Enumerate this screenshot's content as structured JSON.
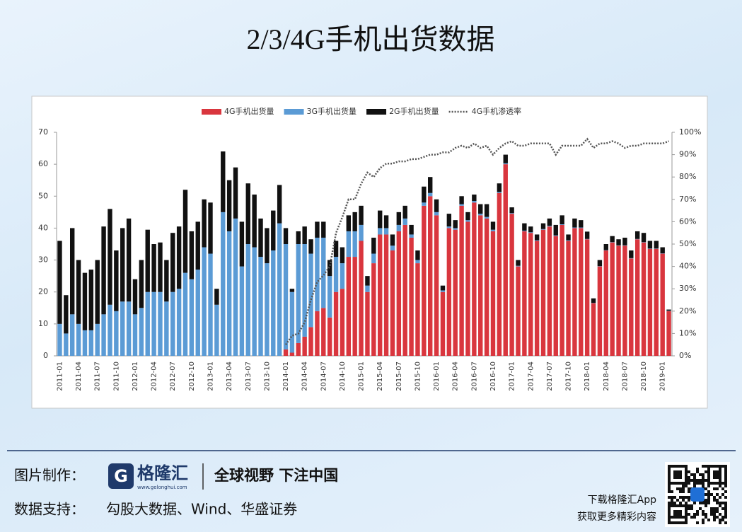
{
  "chart_data": {
    "type": "bar",
    "stacked": true,
    "title": "2/3/4G手机出货数据",
    "categories": [
      "2011-01",
      null,
      null,
      "2011-04",
      null,
      null,
      "2011-07",
      null,
      null,
      "2011-10",
      null,
      null,
      "2012-01",
      null,
      null,
      "2012-04",
      null,
      null,
      "2012-07",
      null,
      null,
      "2012-10",
      null,
      null,
      "2013-01",
      null,
      null,
      "2013-04",
      null,
      null,
      "2013-07",
      null,
      null,
      "2013-10",
      null,
      null,
      "2014-01",
      null,
      null,
      "2014-04",
      null,
      null,
      "2014-07",
      null,
      null,
      "2014-10",
      null,
      null,
      "2015-01",
      null,
      null,
      "2015-04",
      null,
      null,
      "2015-07",
      null,
      null,
      "2015-10",
      null,
      null,
      "2016-01",
      null,
      null,
      "2016-04",
      null,
      null,
      "2016-07",
      null,
      null,
      "2016-10",
      null,
      null,
      "2017-01",
      null,
      null,
      "2017-04",
      null,
      null,
      "2017-07",
      null,
      null,
      "2017-10",
      null,
      null,
      "2018-01",
      null,
      null,
      "2018-04",
      null,
      null,
      "2018-07",
      null,
      null,
      "2018-10",
      null,
      null,
      "2019-01",
      null
    ],
    "series": [
      {
        "name": "4G手机出货量",
        "color": "#d9363e",
        "values": [
          null,
          null,
          null,
          null,
          null,
          null,
          null,
          null,
          null,
          null,
          null,
          null,
          null,
          null,
          null,
          null,
          null,
          null,
          null,
          null,
          null,
          null,
          null,
          null,
          null,
          null,
          null,
          null,
          null,
          null,
          null,
          null,
          null,
          null,
          null,
          null,
          2,
          1,
          4,
          6,
          9,
          14,
          15,
          12,
          20,
          21,
          31,
          31,
          36,
          20,
          29,
          38,
          38,
          33,
          39,
          41,
          37,
          29,
          47,
          50,
          44,
          20,
          40,
          39.5,
          47,
          42,
          48,
          44,
          43,
          39,
          51,
          60,
          44.5,
          28,
          39,
          38.5,
          36,
          39.5,
          40.5,
          37.5,
          41,
          36,
          40,
          40,
          36.5,
          16.5,
          28,
          33,
          35.5,
          34.5,
          34.5,
          30.5,
          36.5,
          35.5,
          33.5,
          33.5,
          32,
          14
        ]
      },
      {
        "name": "3G手机出货量",
        "color": "#5b9bd5",
        "values": [
          10,
          7,
          13,
          10,
          8,
          8,
          10,
          13,
          16,
          14,
          17,
          17,
          13,
          15,
          20,
          20,
          20,
          17,
          20,
          21,
          26,
          24,
          27,
          34,
          32,
          16,
          45,
          39,
          43,
          28,
          35,
          34,
          31,
          29,
          33,
          41.5,
          33,
          19,
          31,
          29,
          23,
          23,
          22,
          13,
          11,
          8,
          8,
          8,
          5,
          2,
          3,
          2,
          2,
          1.5,
          2,
          2,
          1,
          1,
          1,
          1,
          1,
          0.5,
          0.5,
          0.5,
          0.5,
          0.5,
          0.5,
          0.5,
          0.5,
          0.5,
          0.3,
          0.3,
          0.2,
          0.2,
          0.2,
          0.2,
          0.2,
          0.2,
          0.2,
          0.2,
          0.2,
          0.2,
          0.2,
          0.2,
          0.1,
          0.1,
          0.1,
          0.1,
          0.1,
          0.1,
          0.1,
          0.1,
          0.1,
          0.1,
          0.1,
          0.1,
          0.1,
          0.1
        ]
      },
      {
        "name": "2G手机出货量",
        "color": "#111111",
        "values": [
          26,
          12,
          27,
          20,
          18,
          19,
          20,
          27.5,
          30,
          19,
          23,
          26,
          11,
          15,
          19.5,
          15,
          15.5,
          13,
          18.5,
          19.5,
          26,
          15,
          15,
          15,
          16,
          5,
          19,
          16,
          16,
          14,
          19,
          16.5,
          12,
          11,
          12.5,
          12,
          5,
          1,
          4,
          5.5,
          4.5,
          5,
          5,
          5,
          5,
          5,
          5,
          6,
          6,
          3,
          5,
          5.5,
          4,
          3.5,
          4,
          4,
          3,
          3,
          5,
          5,
          4,
          1.5,
          4,
          2.5,
          2.5,
          2.5,
          2,
          3,
          4,
          2.5,
          2.7,
          2.7,
          1.8,
          1.8,
          2.3,
          1.8,
          1.8,
          1.8,
          2.3,
          3.3,
          2.8,
          1.8,
          2.8,
          2.3,
          2.3,
          1.4,
          1.9,
          1.9,
          1.9,
          1.9,
          2.4,
          2.4,
          2.4,
          2.9,
          2.4,
          2.4,
          1.9,
          0.4
        ]
      },
      {
        "name": "4G手机渗透率",
        "type": "line",
        "axis": "y2",
        "color": "#555555",
        "values": [
          null,
          null,
          null,
          null,
          null,
          null,
          null,
          null,
          null,
          null,
          null,
          null,
          null,
          null,
          null,
          null,
          null,
          null,
          null,
          null,
          null,
          null,
          null,
          null,
          null,
          null,
          null,
          null,
          null,
          null,
          null,
          null,
          null,
          null,
          null,
          null,
          5,
          9,
          10,
          15,
          25,
          33,
          36,
          40,
          55,
          62,
          70,
          70,
          77,
          82,
          80,
          84,
          86,
          86,
          87,
          87,
          88,
          88,
          89,
          90,
          90,
          91,
          91,
          93,
          94,
          93,
          95,
          93,
          94,
          90,
          93,
          95,
          96,
          94,
          94,
          95,
          95,
          95,
          95,
          90,
          94,
          94,
          94,
          94,
          97,
          93,
          95,
          95,
          96,
          95,
          93,
          94,
          94,
          95,
          95,
          95,
          95,
          96
        ]
      }
    ],
    "ylim": [
      0,
      70
    ],
    "yticks": [
      0,
      10,
      20,
      30,
      40,
      50,
      60,
      70
    ],
    "y2lim": [
      0,
      100
    ],
    "y2ticks": [
      {
        "value": 0,
        "label": "0%"
      },
      {
        "value": 10,
        "label": "10%"
      },
      {
        "value": 20,
        "label": "20%"
      },
      {
        "value": 30,
        "label": "30%"
      },
      {
        "value": 40,
        "label": "40%"
      },
      {
        "value": 50,
        "label": "50%"
      },
      {
        "value": 60,
        "label": "60%"
      },
      {
        "value": 70,
        "label": "70%"
      },
      {
        "value": 80,
        "label": "80%"
      },
      {
        "value": 90,
        "label": "90%"
      },
      {
        "value": 100,
        "label": "100%"
      }
    ],
    "legend": "top"
  },
  "footer": {
    "credit_label": "图片制作：",
    "brand": "格隆汇",
    "brand_url": "www.gelonghui.com",
    "slogan": "全球视野 下注中国",
    "source_label": "数据支持：",
    "source": "勾股大数据、Wind、华盛证券",
    "app_line1": "下载格隆汇App",
    "app_line2": "获取更多精彩内容"
  }
}
